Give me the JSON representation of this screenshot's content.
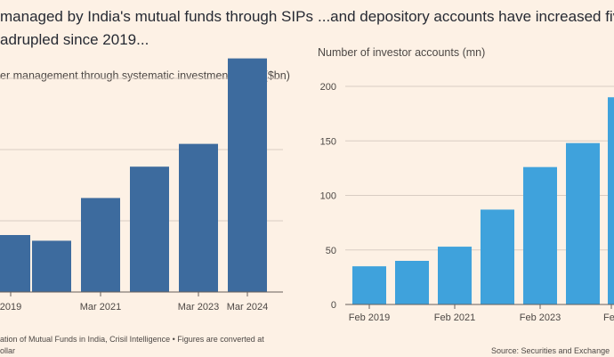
{
  "left": {
    "title_line1": "managed by India's mutual funds through SIPs",
    "title_line2": "adrupled since 2019...",
    "subtitle": "er management through systematic investment plans ($bn)",
    "source_line1": "ation of Mutual Funds in India, Crisil Intelligence • Figures are converted at",
    "source_line2": "ollar",
    "bar_color": "#3d6b9e"
  },
  "right": {
    "title": "...and depository accounts have increased five",
    "subtitle": "Number of investor accounts (mn)",
    "source": "Source: Securities and Exchange",
    "bar_color": "#3fa2dc"
  },
  "chart_data": [
    {
      "type": "bar",
      "title": "managed by India's mutual funds through SIPs adrupled since 2019...",
      "ylabel": "er management through systematic investment plans ($bn)",
      "categories": [
        "2019",
        "",
        "Mar 2021",
        "",
        "Mar 2023",
        "Mar 2024"
      ],
      "x_tick_labels": [
        "2019",
        "Mar 2021",
        "Mar 2023",
        "Mar 2024"
      ],
      "values": [
        40,
        36,
        66,
        88,
        104,
        164
      ],
      "ylim": [
        0,
        200
      ],
      "grid": true
    },
    {
      "type": "bar",
      "title": "...and depository accounts have increased five",
      "ylabel": "Number of investor accounts (mn)",
      "categories": [
        "Feb 2019",
        "",
        "Feb 2021",
        "",
        "Feb 2023",
        "",
        "Fe"
      ],
      "x_tick_labels": [
        "Feb 2019",
        "Feb 2021",
        "Feb 2023",
        "Fe"
      ],
      "y_tick_labels": [
        "0",
        "50",
        "100",
        "150",
        "200"
      ],
      "values": [
        35,
        40,
        53,
        87,
        126,
        148,
        190
      ],
      "ylim": [
        0,
        200
      ],
      "grid": true
    }
  ]
}
